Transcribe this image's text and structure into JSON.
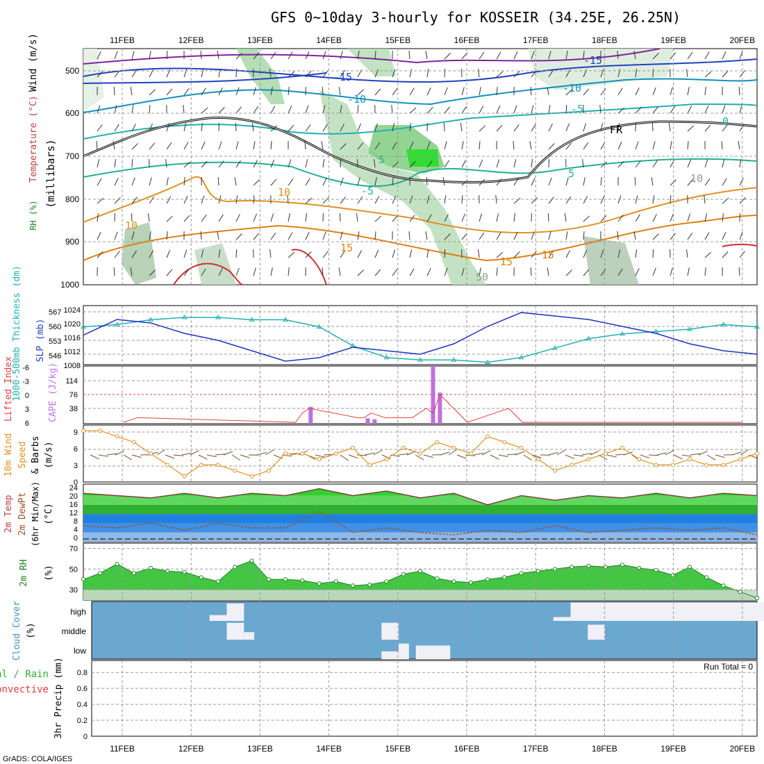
{
  "title": "GFS 0~10day 3-hourly for KOSSEIR (34.25E, 26.25N)",
  "footer": "GrADS: COLA/IGES",
  "date_labels": [
    "11FEB",
    "12FEB",
    "13FEB",
    "14FEB",
    "15FEB",
    "16FEB",
    "17FEB",
    "18FEB",
    "19FEB",
    "20FEB"
  ],
  "panels": {
    "upper": {
      "ylabel": "(millibars)",
      "ylabel_parts": [
        "RH (%)",
        "Temperature (°C)",
        "Wind (m/s)"
      ],
      "pressure_ticks": [
        "500",
        "600",
        "700",
        "800",
        "900",
        "1000"
      ],
      "contour_labels": [
        "-15",
        "-15",
        "-10",
        "-10",
        "-5",
        "-5",
        "0",
        "5",
        "5",
        "10",
        "10",
        "10",
        "15",
        "15",
        "15",
        "FR",
        "50"
      ]
    },
    "thickness": {
      "ylabel_left": "1000-500mb Thickness (dm)",
      "ylabel_right": "SLP (mb)",
      "thickness_ticks": [
        "567",
        "560",
        "553",
        "546"
      ],
      "slp_ticks": [
        "1024",
        "1020",
        "1016",
        "1012",
        "1008"
      ]
    },
    "cape": {
      "ylabel_left": "Lifted Index",
      "ylabel_right": "CAPE (J/kg)",
      "li_ticks": [
        "-6",
        "-3",
        "0",
        "3",
        "6"
      ],
      "cape_ticks": [
        "114",
        "76",
        "38"
      ]
    },
    "wind10m": {
      "ylabel": [
        "10m Wind",
        "Speed",
        "& Barbs",
        "(m/s)"
      ],
      "ticks": [
        "9",
        "6",
        "3",
        "0"
      ]
    },
    "temp2m": {
      "ylabel": [
        "2m Temp",
        "2m DewPt",
        "(6hr Min/Max)",
        "(°C)"
      ],
      "ticks": [
        "24",
        "20",
        "16",
        "12",
        "8",
        "4",
        "0"
      ]
    },
    "rh2m": {
      "ylabel": [
        "2m RH",
        "(%)"
      ],
      "ticks": [
        "70",
        "50",
        "30"
      ]
    },
    "cloud": {
      "ylabel": [
        "Cloud Cover",
        "(%)"
      ],
      "levels": [
        "high",
        "middle",
        "low"
      ]
    },
    "precip": {
      "ylabel": [
        "Total / Rain",
        "Convective",
        "3hr Precip (mm)"
      ],
      "ticks": [
        "0.8",
        "0.6",
        "0.4",
        "0.2",
        "0"
      ],
      "run_total": "Run Total = 0"
    }
  },
  "chart_data": [
    {
      "type": "line",
      "name": "thickness_and_slp",
      "x_days": [
        0,
        0.5,
        1,
        1.5,
        2,
        2.5,
        3,
        3.5,
        4,
        4.5,
        5,
        5.5,
        6,
        6.5,
        7,
        7.5,
        8,
        8.5,
        9,
        9.5,
        10
      ],
      "series": [
        {
          "name": "1000-500mb Thickness (dm)",
          "color": "#20b0b0",
          "values": [
            560,
            561,
            563,
            564,
            564,
            563,
            563,
            560,
            552,
            547,
            546,
            546,
            545,
            547,
            551,
            555,
            557,
            558,
            559,
            561,
            560
          ]
        },
        {
          "name": "SLP (mb)",
          "color": "#2030c0",
          "values": [
            1016.5,
            1021,
            1020,
            1017,
            1015,
            1012,
            1009,
            1010,
            1013,
            1012,
            1011,
            1014,
            1019,
            1023,
            1022,
            1021,
            1019,
            1017,
            1014,
            1012,
            1011
          ]
        }
      ],
      "ylim_thickness": [
        544,
        569
      ],
      "ylim_slp": [
        1008,
        1025
      ]
    },
    {
      "type": "bar",
      "name": "cape_li",
      "cape_bars": [
        {
          "day": 2.72,
          "value": 38
        },
        {
          "day": 3.55,
          "value": 12
        },
        {
          "day": 3.65,
          "value": 10
        },
        {
          "day": 4.5,
          "value": 130
        },
        {
          "day": 4.6,
          "value": 70
        }
      ],
      "cape_ylim": [
        0,
        130
      ],
      "lifted_index": {
        "x_days": [
          0,
          0.2,
          2.5,
          2.6,
          2.7,
          3.4,
          3.5,
          3.6,
          3.8,
          4.0,
          4.2,
          4.4,
          4.5,
          4.6,
          4.8,
          5.0,
          5.2,
          5.4,
          5.6,
          5.8,
          9.0
        ],
        "values": [
          6,
          5,
          6,
          4,
          3,
          5,
          5,
          4,
          5,
          5,
          5,
          3,
          4,
          0,
          3,
          6,
          5,
          4,
          3,
          6,
          6
        ]
      },
      "li_ylim": [
        -6,
        6
      ]
    },
    {
      "type": "line",
      "name": "wind10m",
      "x_days": [
        0,
        0.25,
        0.5,
        0.75,
        1,
        1.25,
        1.5,
        1.75,
        2,
        2.25,
        2.5,
        2.75,
        3,
        3.25,
        3.5,
        3.75,
        4,
        4.25,
        4.5,
        4.75,
        5,
        5.25,
        5.5,
        5.75,
        6,
        6.25,
        6.5,
        6.75,
        7,
        7.25,
        7.5,
        7.75,
        8,
        8.25,
        8.5,
        8.75,
        9,
        9.25,
        9.5,
        9.75,
        10
      ],
      "values": [
        9,
        9,
        8,
        7,
        5,
        3,
        1,
        3,
        3,
        2,
        1,
        2,
        5,
        5,
        4,
        5,
        6,
        3,
        4,
        6,
        5,
        7,
        6,
        5,
        8,
        7,
        6,
        4,
        2,
        3,
        4,
        5,
        6,
        4,
        3,
        3,
        4,
        3,
        3,
        4,
        5
      ],
      "ylim": [
        0,
        10
      ],
      "color": "#e09020"
    },
    {
      "type": "area",
      "name": "temp2m",
      "x_days": [
        0,
        0.5,
        1,
        1.5,
        2,
        2.5,
        3,
        3.5,
        4,
        4.5,
        5,
        5.5,
        6,
        6.5,
        7,
        7.5,
        8,
        8.5,
        9,
        9.5,
        10
      ],
      "temperature": [
        21,
        20,
        19,
        21,
        19,
        21,
        20,
        23,
        20,
        22,
        19,
        21,
        16,
        20,
        18,
        20,
        19,
        21,
        19,
        21,
        20
      ],
      "dewpoint": [
        7,
        6,
        8,
        5,
        8,
        6,
        6,
        13,
        4,
        6,
        4,
        3,
        5,
        4,
        7,
        4,
        5,
        6,
        5,
        6,
        3
      ],
      "ylim": [
        0,
        25
      ]
    },
    {
      "type": "area",
      "name": "rh2m",
      "x_days": [
        0,
        0.25,
        0.5,
        0.75,
        1,
        1.25,
        1.5,
        1.75,
        2,
        2.25,
        2.5,
        2.75,
        3,
        3.25,
        3.5,
        3.75,
        4,
        4.25,
        4.5,
        4.75,
        5,
        5.25,
        5.5,
        5.75,
        6,
        6.25,
        6.5,
        6.75,
        7,
        7.25,
        7.5,
        7.75,
        8,
        8.25,
        8.5,
        8.75,
        9,
        9.25,
        9.5,
        9.75,
        10
      ],
      "values": [
        40,
        46,
        55,
        46,
        51,
        48,
        47,
        42,
        38,
        52,
        58,
        40,
        40,
        39,
        36,
        38,
        34,
        35,
        38,
        45,
        48,
        41,
        38,
        37,
        40,
        42,
        46,
        48,
        50,
        52,
        53,
        52,
        54,
        51,
        49,
        44,
        52,
        42,
        34,
        28,
        22
      ],
      "ylim": [
        20,
        75
      ],
      "color": "#30c030"
    },
    {
      "type": "bar",
      "name": "cloud_cover",
      "high": [
        {
          "start": 1.25,
          "end": 1.5,
          "value": 30
        },
        {
          "start": 1.5,
          "end": 1.75,
          "value": 90
        },
        {
          "start": 6.25,
          "end": 6.5,
          "value": 20
        },
        {
          "start": 6.5,
          "end": 10.0,
          "value": 95
        }
      ],
      "middle": [
        {
          "start": 1.5,
          "end": 1.75,
          "value": 90
        },
        {
          "start": 1.75,
          "end": 1.9,
          "value": 40
        },
        {
          "start": 3.75,
          "end": 4.0,
          "value": 90
        },
        {
          "start": 6.75,
          "end": 7.0,
          "value": 80
        }
      ],
      "low": [
        {
          "start": 3.75,
          "end": 4.0,
          "value": 40
        },
        {
          "start": 4.0,
          "end": 4.15,
          "value": 80
        },
        {
          "start": 4.25,
          "end": 4.75,
          "value": 70
        }
      ],
      "color_bg": "#6aa8d0",
      "color_cloud": "#f0f0f6"
    },
    {
      "type": "bar",
      "name": "precip3hr",
      "values": [],
      "ylim": [
        0,
        0.95
      ]
    }
  ]
}
